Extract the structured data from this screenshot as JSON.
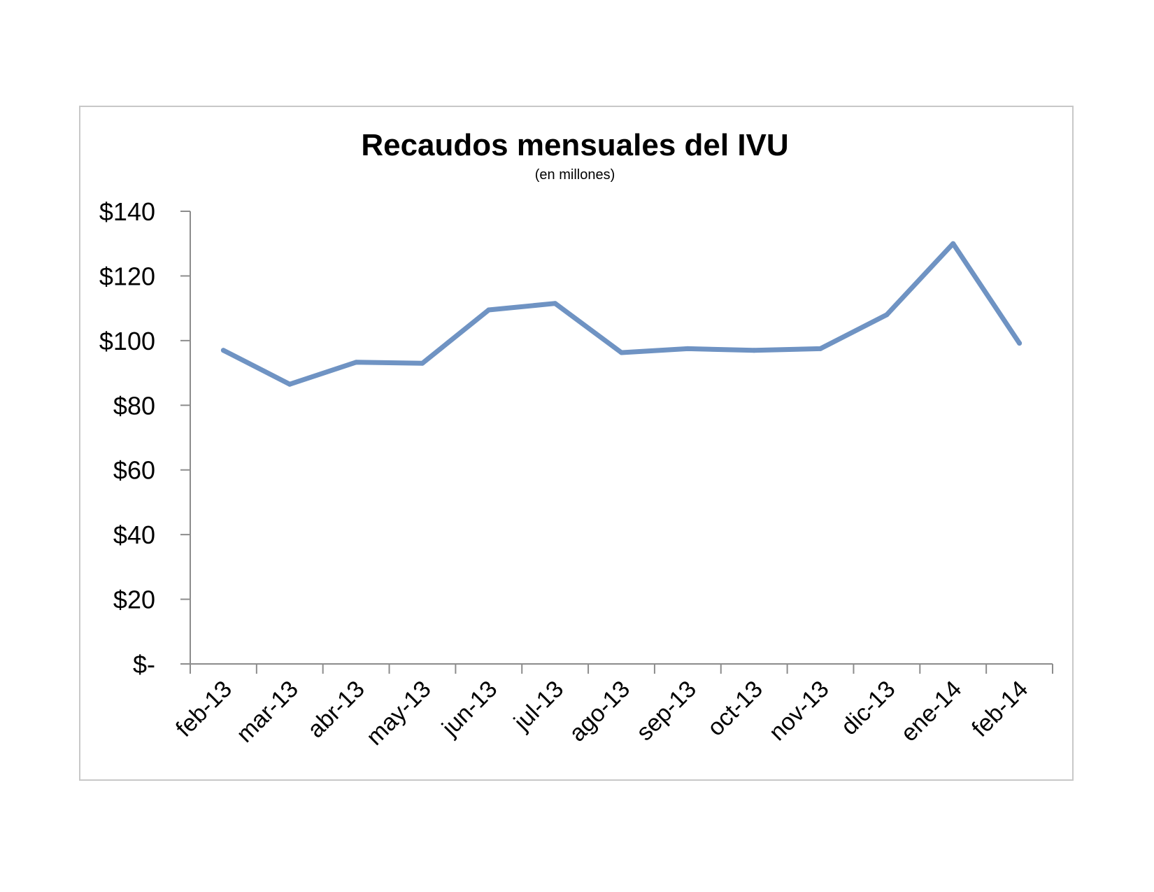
{
  "chart_data": {
    "type": "line",
    "title": "Recaudos mensuales del IVU",
    "subtitle": "(en millones)",
    "xlabel": "",
    "ylabel": "",
    "categories": [
      "feb-13",
      "mar-13",
      "abr-13",
      "may-13",
      "jun-13",
      "jul-13",
      "ago-13",
      "sep-13",
      "oct-13",
      "nov-13",
      "dic-13",
      "ene-14",
      "feb-14"
    ],
    "series": [
      {
        "values": [
          97,
          86.5,
          93.3,
          93,
          109.5,
          111.5,
          96.3,
          97.5,
          97,
          97.5,
          108,
          130,
          99.2
        ]
      }
    ],
    "ylim": [
      0,
      140
    ],
    "y_ticks": [
      0,
      20,
      40,
      60,
      80,
      100,
      120,
      140
    ],
    "y_tick_labels": [
      "$-",
      "$20",
      "$40",
      "$60",
      "$80",
      "$100",
      "$120",
      "$140"
    ],
    "grid": false,
    "legend": "none",
    "colors": {
      "line": "#6f93c3",
      "axis": "#8c8c8c",
      "frame": "#c8c8c8"
    }
  }
}
